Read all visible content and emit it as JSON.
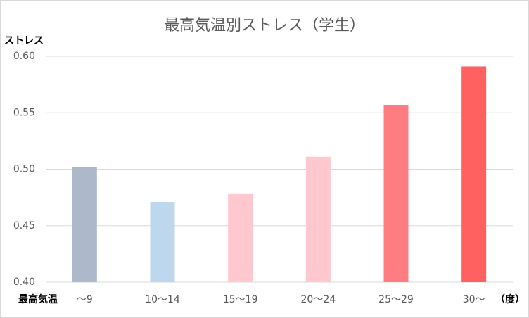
{
  "chart_data": {
    "type": "bar",
    "title": "最高気温別ストレス（学生）",
    "y_label": "ストレス",
    "x_label": "最高気温",
    "x_unit": "（度）",
    "categories": [
      "～9",
      "10～14",
      "15～19",
      "20～24",
      "25～29",
      "30～"
    ],
    "values": [
      0.502,
      0.471,
      0.478,
      0.511,
      0.557,
      0.591
    ],
    "colors": [
      "#adb9ca",
      "#bdd7ee",
      "#ffc7ce",
      "#ffc7ce",
      "#ff7c80",
      "#ff6161"
    ],
    "ylim": [
      0.4,
      0.6
    ],
    "yticks": [
      {
        "value": 0.4,
        "label": "0.40"
      },
      {
        "value": 0.45,
        "label": "0.45"
      },
      {
        "value": 0.5,
        "label": "0.50"
      },
      {
        "value": 0.55,
        "label": "0.55"
      },
      {
        "value": 0.6,
        "label": "0.60"
      }
    ],
    "grid": true
  }
}
